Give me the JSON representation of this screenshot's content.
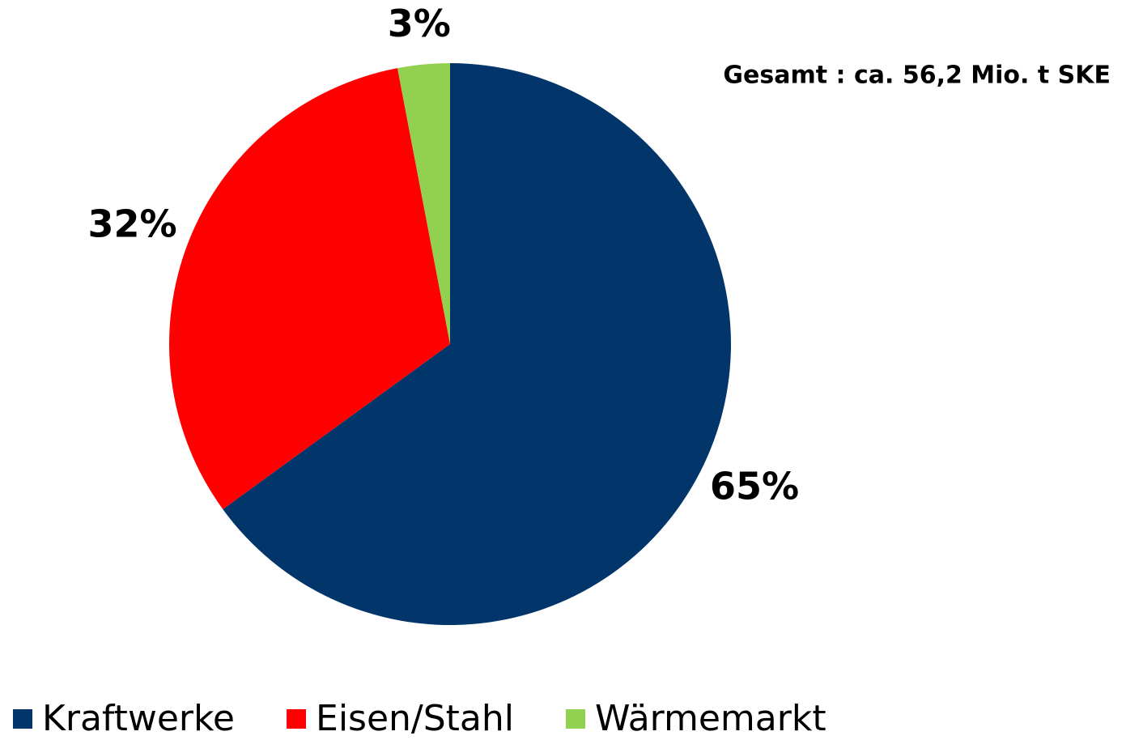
{
  "chart_data": {
    "type": "pie",
    "annotation": "Gesamt : ca. 56,2 Mio. t SKE",
    "categories": [
      "Kraftwerke",
      "Eisen/Stahl",
      "Wärmemarkt"
    ],
    "values": [
      65,
      32,
      3
    ],
    "value_labels": [
      "65%",
      "32%",
      "3%"
    ],
    "colors": [
      "#02366a",
      "#ff0000",
      "#92d050"
    ],
    "legend": "bottom"
  }
}
